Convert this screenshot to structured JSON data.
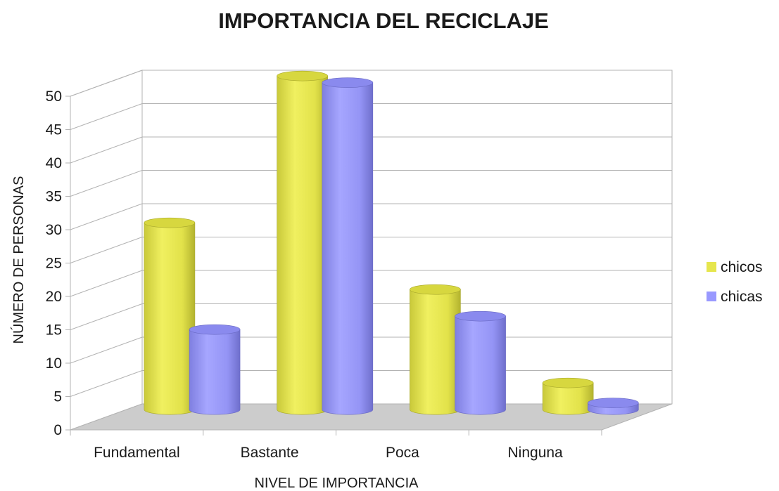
{
  "chart_data": {
    "type": "bar",
    "title": "IMPORTANCIA DEL RECICLAJE",
    "xlabel": "NIVEL DE IMPORTANCIA",
    "ylabel": "NÚMERO DE PERSONAS",
    "categories": [
      "Fundamental",
      "Bastante",
      "Poca",
      "Ninguna"
    ],
    "series": [
      {
        "name": "chicos",
        "values": [
          28,
          50,
          18,
          4
        ],
        "color": "#e6e64d"
      },
      {
        "name": "chicas",
        "values": [
          12,
          49,
          14,
          1
        ],
        "color": "#9999ff"
      }
    ],
    "ylim": [
      0,
      50
    ],
    "yticks": [
      "0",
      "5",
      "10",
      "15",
      "20",
      "25",
      "30",
      "35",
      "40",
      "45",
      "50"
    ],
    "legend_position": "right",
    "grid": true,
    "style": "3d-cylinder"
  }
}
